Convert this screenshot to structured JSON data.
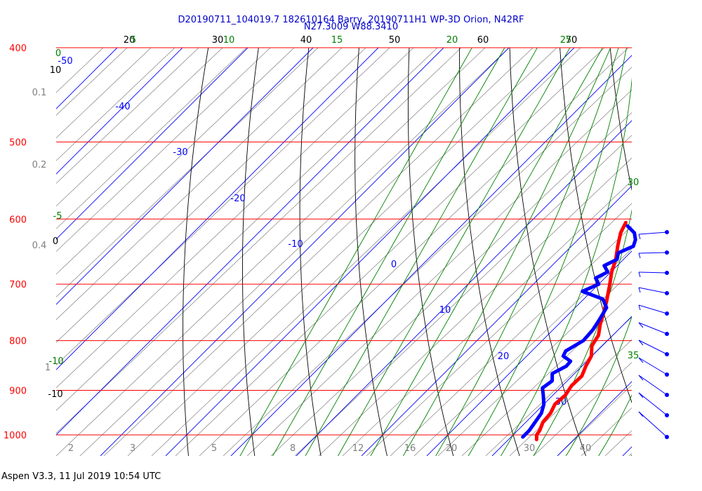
{
  "title_line1": "D20190711_104019.7 182610164 Barry, 20190711H1 WP-3D Orion, N42RF",
  "title_line2": "N27.3009 W88.3410",
  "footer": "Aspen V3.3, 11 Jul 2019  10:54 UTC",
  "colors": {
    "isobar": "#ff0000",
    "isotherm": "#0000ff",
    "dry_adiabat": "#000000",
    "moist_adiabat": "#008000",
    "mixing_ratio": "#808080",
    "temperature": "#ff0000",
    "dewpoint": "#0000ff",
    "title": "#0000cc"
  },
  "chart_data": {
    "type": "line",
    "subtype": "skew-t log-p",
    "y_axis": {
      "quantity": "pressure",
      "scale": "log",
      "range": [
        1000,
        400
      ],
      "tick_labels": [
        "400",
        "500",
        "600",
        "700",
        "800",
        "900",
        "1000"
      ]
    },
    "isotherm_labels": [
      "-50",
      "-40",
      "-30",
      "-20",
      "-10",
      "0",
      "10",
      "20",
      "30"
    ],
    "dry_adiabat_top_labels": [
      "20",
      "30",
      "40",
      "50",
      "60",
      "70"
    ],
    "dry_adiabat_left_labels": [
      "10",
      "0",
      "-10"
    ],
    "moist_adiabat_top_labels": [
      "5",
      "10",
      "15",
      "20",
      "25"
    ],
    "moist_adiabat_left_labels": [
      "0",
      "-5",
      "-10"
    ],
    "moist_adiabat_right_labels": [
      "30",
      "35"
    ],
    "mixing_ratio_bottom_labels": [
      "2",
      "3",
      "5",
      "8",
      "12",
      "16",
      "20",
      "30",
      "40"
    ],
    "mixing_ratio_left_labels": [
      "0.1",
      "0.2",
      "0.4",
      "1"
    ],
    "series": [
      {
        "quantity": "temperature",
        "points": [
          [
            1011,
            24.3
          ],
          [
            1000,
            23.6
          ],
          [
            990,
            23.4
          ],
          [
            970,
            22.6
          ],
          [
            950,
            22.4
          ],
          [
            930,
            21.7
          ],
          [
            910,
            21.9
          ],
          [
            890,
            21.4
          ],
          [
            870,
            21.5
          ],
          [
            850,
            20.6
          ],
          [
            830,
            19.9
          ],
          [
            810,
            18.4
          ],
          [
            790,
            17.8
          ],
          [
            770,
            16.4
          ],
          [
            750,
            15.2
          ],
          [
            730,
            13.9
          ],
          [
            700,
            11.7
          ],
          [
            680,
            10.1
          ],
          [
            660,
            8.8
          ],
          [
            640,
            7.1
          ],
          [
            620,
            5.5
          ],
          [
            605,
            4.7
          ]
        ]
      },
      {
        "quantity": "dewpoint",
        "points": [
          [
            1005,
            21.8
          ],
          [
            990,
            21.8
          ],
          [
            970,
            21.4
          ],
          [
            950,
            21.0
          ],
          [
            930,
            20.0
          ],
          [
            910,
            18.5
          ],
          [
            895,
            17.3
          ],
          [
            880,
            17.7
          ],
          [
            865,
            16.6
          ],
          [
            850,
            17.6
          ],
          [
            840,
            17.5
          ],
          [
            830,
            15.6
          ],
          [
            820,
            15.2
          ],
          [
            800,
            16.3
          ],
          [
            780,
            16.1
          ],
          [
            760,
            15.5
          ],
          [
            740,
            14.8
          ],
          [
            725,
            12.9
          ],
          [
            712,
            8.6
          ],
          [
            700,
            10.0
          ],
          [
            690,
            8.6
          ],
          [
            680,
            9.5
          ],
          [
            670,
            8.0
          ],
          [
            660,
            9.0
          ],
          [
            650,
            8.2
          ],
          [
            640,
            9.5
          ],
          [
            630,
            8.8
          ],
          [
            620,
            7.6
          ],
          [
            610,
            5.5
          ]
        ]
      }
    ]
  }
}
